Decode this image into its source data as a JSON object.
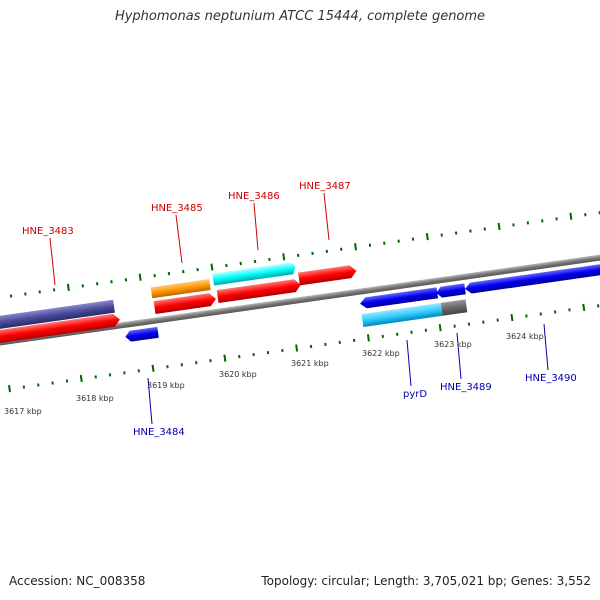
{
  "title": "Hyphomonas neptunium ATCC 15444, complete genome",
  "footer": {
    "accession": "Accession: NC_008358",
    "summary": "Topology: circular; Length: 3,705,021 bp; Genes: 3,552"
  },
  "scale": {
    "ticks": [
      {
        "label": "3617 kbp"
      },
      {
        "label": "3618 kbp"
      },
      {
        "label": "3619 kbp"
      },
      {
        "label": "3620 kbp"
      },
      {
        "label": "3621 kbp"
      },
      {
        "label": "3622 kbp"
      },
      {
        "label": "3623 kbp"
      },
      {
        "label": "3624 kbp"
      }
    ]
  },
  "colors": {
    "forward_label": "#cc0000",
    "reverse_label": "#0000aa",
    "red": "#ff0000",
    "blue": "#0000ee",
    "purple": "#4b4b9b",
    "orange": "#ff9900",
    "cyan": "#00ffff",
    "lightblue": "#33ccff",
    "gray": "#666666",
    "tick": "#006600",
    "backbone": "#888888"
  },
  "gene_labels": {
    "forward": [
      "HNE_3483",
      "HNE_3485",
      "HNE_3486",
      "HNE_3487"
    ],
    "reverse": [
      "HNE_3484",
      "pyrD",
      "HNE_3489",
      "HNE_3490"
    ]
  }
}
